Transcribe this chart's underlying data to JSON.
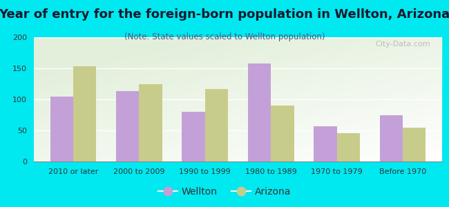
{
  "title": "Year of entry for the foreign-born population in Wellton, Arizona",
  "subtitle": "(Note: State values scaled to Wellton population)",
  "categories": [
    "2010 or later",
    "2000 to 2009",
    "1990 to 1999",
    "1980 to 1989",
    "1970 to 1979",
    "Before 1970"
  ],
  "wellton_values": [
    105,
    113,
    80,
    158,
    57,
    75
  ],
  "arizona_values": [
    153,
    125,
    117,
    90,
    46,
    55
  ],
  "wellton_color": "#c4a0d8",
  "arizona_color": "#c8cc8a",
  "background_outer": "#00e8f0",
  "ylim": [
    0,
    200
  ],
  "yticks": [
    0,
    50,
    100,
    150,
    200
  ],
  "bar_width": 0.35,
  "title_fontsize": 13,
  "subtitle_fontsize": 8.5,
  "legend_fontsize": 10,
  "tick_fontsize": 8,
  "watermark": "City-Data.com"
}
